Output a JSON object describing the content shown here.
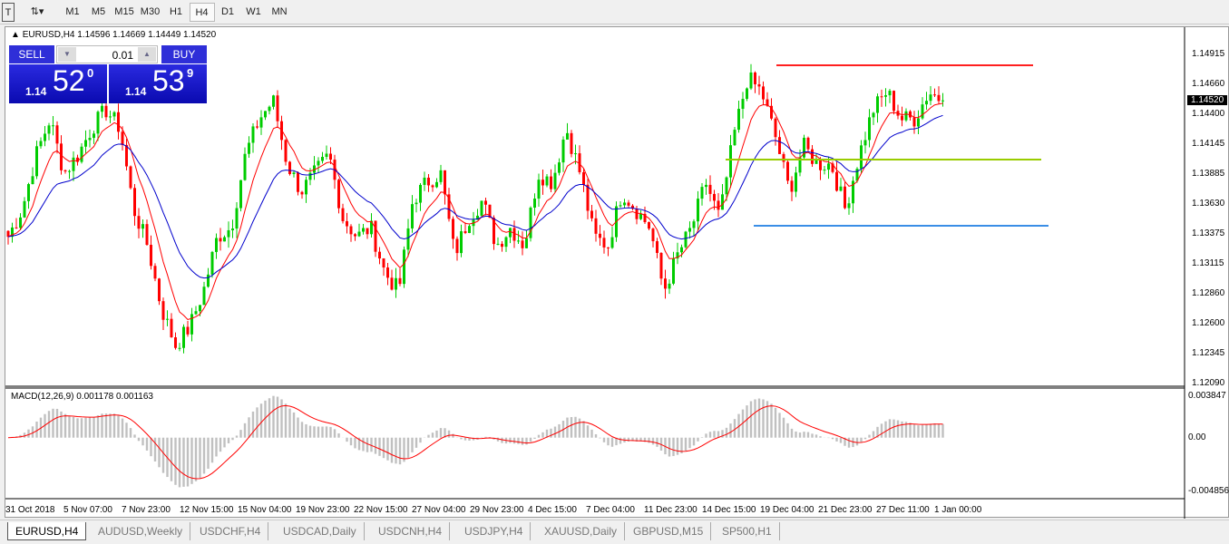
{
  "toolbar": {
    "timeframes": [
      "M1",
      "M5",
      "M15",
      "M30",
      "H1",
      "H4",
      "D1",
      "W1",
      "MN"
    ],
    "active": "H4"
  },
  "chart": {
    "header": "EURUSD,H4  1.14596 1.14669 1.14449 1.14520",
    "current_price": "1.14520",
    "trade_panel": {
      "sell": "SELL",
      "buy": "BUY",
      "lot": "0.01",
      "bid_small": "1.14",
      "bid_big": "52",
      "bid_sup": "0",
      "ask_small": "1.14",
      "ask_big": "53",
      "ask_sup": "9"
    },
    "price_axis": [
      "1.14915",
      "1.14660",
      "1.14400",
      "1.14145",
      "1.13885",
      "1.13630",
      "1.13375",
      "1.13115",
      "1.12860",
      "1.12600",
      "1.12345",
      "1.12090"
    ],
    "macd_label": "MACD(12,26,9) 0.001178 0.001163",
    "macd_axis": [
      "0.003847",
      "0.00",
      "-0.004856"
    ],
    "time_axis": [
      "31 Oct 2018",
      "5 Nov 07:00",
      "7 Nov 23:00",
      "12 Nov 15:00",
      "15 Nov 04:00",
      "19 Nov 23:00",
      "22 Nov 15:00",
      "27 Nov 04:00",
      "29 Nov 23:00",
      "4 Dec 15:00",
      "7 Dec 04:00",
      "11 Dec 23:00",
      "14 Dec 15:00",
      "19 Dec 04:00",
      "21 Dec 23:00",
      "27 Dec 11:00",
      "1 Jan 00:00"
    ]
  },
  "chart_data": {
    "type": "candlestick",
    "symbol": "EURUSD",
    "timeframe": "H4",
    "ylim": [
      1.1209,
      1.14915
    ],
    "close_path": [
      1.13351,
      1.13585,
      1.14051,
      1.14363,
      1.13896,
      1.14051,
      1.14285,
      1.1444,
      1.14285,
      1.13585,
      1.13273,
      1.12729,
      1.12418,
      1.12573,
      1.12884,
      1.13351,
      1.13429,
      1.14051,
      1.14363,
      1.14518,
      1.13974,
      1.1374,
      1.13896,
      1.14051,
      1.13507,
      1.13351,
      1.13429,
      1.1304,
      1.12884,
      1.13662,
      1.13818,
      1.13896,
      1.13196,
      1.13507,
      1.13662,
      1.13273,
      1.13429,
      1.13273,
      1.13896,
      1.13818,
      1.14285,
      1.13896,
      1.13351,
      1.13273,
      1.1374,
      1.13585,
      1.13429,
      1.12884,
      1.13196,
      1.13429,
      1.13818,
      1.13507,
      1.14207,
      1.14713,
      1.14596,
      1.14207,
      1.1374,
      1.14129,
      1.13974,
      1.13974,
      1.13585,
      1.14051,
      1.1444,
      1.14596,
      1.14363,
      1.14363,
      1.14596,
      1.1452
    ],
    "levels": [
      {
        "price": 1.14822,
        "color": "#ff2020"
      },
      {
        "price": 1.14012,
        "color": "#99cc00"
      },
      {
        "price": 1.13444,
        "color": "#3a8ee6"
      }
    ],
    "colors": {
      "bull": "#00cc00",
      "bear": "#ff0000",
      "ma_fast": "#ff0000",
      "ma_slow": "#0000cc",
      "macd_hist": "#c0c0c0",
      "macd_signal": "#ff0000"
    },
    "macd": {
      "params": "12,26,9",
      "main": 0.001178,
      "signal": 0.001163,
      "ylim": [
        -0.004856,
        0.003847
      ]
    }
  },
  "tabs": [
    "EURUSD,H4",
    "AUDUSD,Weekly",
    "USDCHF,H4",
    "USDCAD,Daily",
    "USDCNH,H4",
    "USDJPY,H4",
    "XAUUSD,Daily",
    "GBPUSD,M15",
    "SP500,H1"
  ]
}
